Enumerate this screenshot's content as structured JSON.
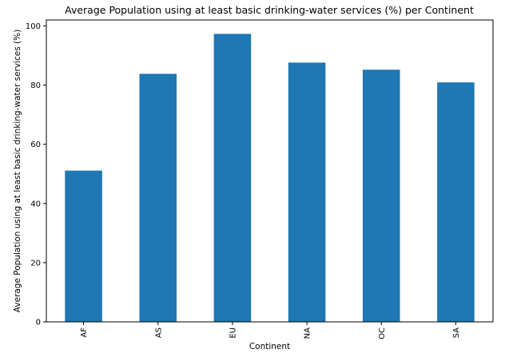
{
  "chart_data": {
    "type": "bar",
    "title": "Average Population using at least basic drinking-water services (%) per Continent",
    "xlabel": "Continent",
    "ylabel": "Average Population using at least basic drinking-water services (%)",
    "categories": [
      "AF",
      "AS",
      "EU",
      "NA",
      "OC",
      "SA"
    ],
    "values": [
      51.1,
      83.8,
      97.3,
      87.6,
      85.2,
      80.9
    ],
    "ylim": [
      0,
      102
    ],
    "yticks": [
      0,
      20,
      40,
      60,
      80,
      100
    ],
    "grid": false,
    "legend": "none",
    "bar_color": "#1f77b4"
  }
}
